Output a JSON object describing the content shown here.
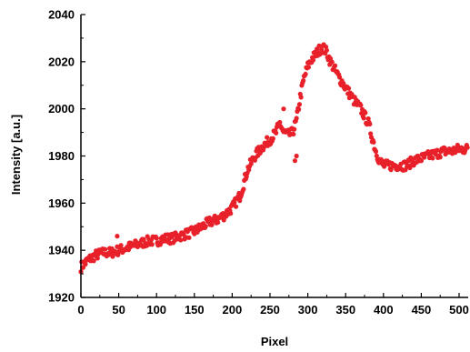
{
  "chart_data": {
    "type": "scatter",
    "title": "",
    "xlabel": "Pixel",
    "ylabel": "Intensity [a.u.]",
    "xlim": [
      0,
      512
    ],
    "ylim": [
      1920,
      2040
    ],
    "x_ticks": [
      0,
      50,
      100,
      150,
      200,
      250,
      300,
      350,
      400,
      450,
      500
    ],
    "y_ticks": [
      1920,
      1940,
      1960,
      1980,
      2000,
      2020,
      2040
    ],
    "marker_color": "#e8202a",
    "grid": false,
    "legend": "none",
    "profile": [
      [
        0,
        1933
      ],
      [
        10,
        1936
      ],
      [
        20,
        1938
      ],
      [
        30,
        1939
      ],
      [
        40,
        1939
      ],
      [
        50,
        1940
      ],
      [
        60,
        1941
      ],
      [
        70,
        1942
      ],
      [
        80,
        1943
      ],
      [
        90,
        1944
      ],
      [
        100,
        1944
      ],
      [
        110,
        1945
      ],
      [
        120,
        1945
      ],
      [
        130,
        1946
      ],
      [
        140,
        1947
      ],
      [
        150,
        1948
      ],
      [
        160,
        1950
      ],
      [
        170,
        1952
      ],
      [
        180,
        1953
      ],
      [
        190,
        1955
      ],
      [
        200,
        1958
      ],
      [
        210,
        1963
      ],
      [
        215,
        1968
      ],
      [
        220,
        1974
      ],
      [
        230,
        1980
      ],
      [
        240,
        1984
      ],
      [
        250,
        1987
      ],
      [
        258,
        1990
      ],
      [
        263,
        1994
      ],
      [
        268,
        1990
      ],
      [
        275,
        1989
      ],
      [
        280,
        1990
      ],
      [
        285,
        1995
      ],
      [
        290,
        2005
      ],
      [
        295,
        2013
      ],
      [
        300,
        2018
      ],
      [
        305,
        2021
      ],
      [
        310,
        2023
      ],
      [
        315,
        2025
      ],
      [
        320,
        2026
      ],
      [
        325,
        2024
      ],
      [
        330,
        2020
      ],
      [
        340,
        2014
      ],
      [
        350,
        2009
      ],
      [
        360,
        2004
      ],
      [
        370,
        2000
      ],
      [
        380,
        1994
      ],
      [
        385,
        1988
      ],
      [
        390,
        1982
      ],
      [
        395,
        1978
      ],
      [
        400,
        1976
      ],
      [
        410,
        1976
      ],
      [
        420,
        1976
      ],
      [
        430,
        1976
      ],
      [
        440,
        1978
      ],
      [
        450,
        1979
      ],
      [
        460,
        1980
      ],
      [
        470,
        1981
      ],
      [
        480,
        1982
      ],
      [
        490,
        1982
      ],
      [
        500,
        1983
      ],
      [
        510,
        1983
      ]
    ],
    "outliers": [
      [
        48,
        1946
      ],
      [
        268,
        2000
      ],
      [
        283,
        1978
      ],
      [
        285,
        1980
      ]
    ]
  }
}
